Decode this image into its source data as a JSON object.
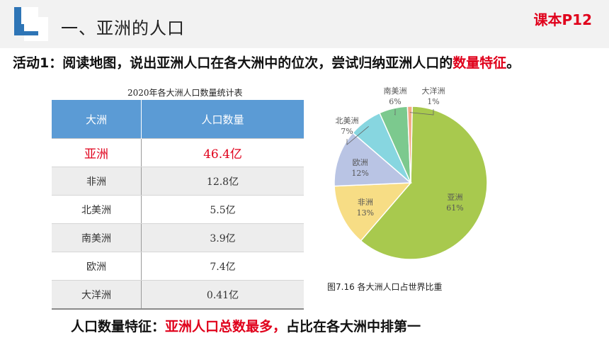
{
  "header": {
    "title": "一、亚洲的人口",
    "textbook_ref": "课本P12"
  },
  "activity": {
    "prefix": "活动1：阅读地图，说出亚洲人口在各大洲中的位次，尝试归纳亚洲人口的",
    "highlight": "数量特征",
    "suffix": "。"
  },
  "table": {
    "caption": "2020年各大洲人口数量统计表",
    "headers": [
      "大洲",
      "人口数量"
    ],
    "rows": [
      [
        "亚洲",
        "46.4亿"
      ],
      [
        "非洲",
        "12.8亿"
      ],
      [
        "北美洲",
        "5.5亿"
      ],
      [
        "南美洲",
        "3.9亿"
      ],
      [
        "欧洲",
        "7.4亿"
      ],
      [
        "大洋洲",
        "0.41亿"
      ]
    ]
  },
  "chart_data": {
    "type": "pie",
    "title": "",
    "caption": "图7.16 各大洲人口占世界比重",
    "slices": [
      {
        "label": "亚洲",
        "value": 61,
        "pct": "61%",
        "color": "#a8c94e"
      },
      {
        "label": "非洲",
        "value": 13,
        "pct": "13%",
        "color": "#f7dd85"
      },
      {
        "label": "欧洲",
        "value": 12,
        "pct": "12%",
        "color": "#b9c4e4"
      },
      {
        "label": "北美洲",
        "value": 7,
        "pct": "7%",
        "color": "#87d6e0"
      },
      {
        "label": "南美洲",
        "value": 6,
        "pct": "6%",
        "color": "#7cc98e"
      },
      {
        "label": "大洋洲",
        "value": 1,
        "pct": "1%",
        "color": "#f3a885"
      }
    ]
  },
  "summary": {
    "prefix": "人口数量特征：",
    "highlight": "亚洲人口总数最多，",
    "suffix": "占比在各大洲中排第一"
  },
  "colors": {
    "accent_red": "#e0001b",
    "table_header": "#5b9bd5",
    "logo_blue": "#2e75b6"
  }
}
